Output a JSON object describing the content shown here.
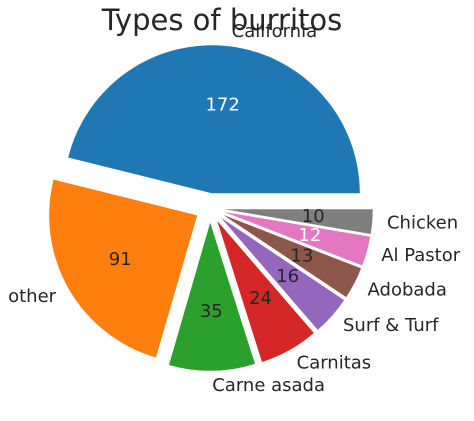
{
  "chart_data": {
    "type": "pie",
    "title": "Types of burritos",
    "slices": [
      {
        "label": "California",
        "value": 172,
        "color": "#1f77b4",
        "value_color": "#ffffff"
      },
      {
        "label": "other",
        "value": 91,
        "color": "#ff7f0e",
        "value_color": "#262626"
      },
      {
        "label": "Carne asada",
        "value": 35,
        "color": "#2ca02c",
        "value_color": "#262626"
      },
      {
        "label": "Carnitas",
        "value": 24,
        "color": "#d62728",
        "value_color": "#262626"
      },
      {
        "label": "Surf & Turf",
        "value": 16,
        "color": "#9467bd",
        "value_color": "#262626"
      },
      {
        "label": "Adobada",
        "value": 13,
        "color": "#8c564b",
        "value_color": "#262626"
      },
      {
        "label": "Al Pastor",
        "value": 12,
        "color": "#e377c2",
        "value_color": "#ffffff"
      },
      {
        "label": "Chicken",
        "value": 10,
        "color": "#7f7f7f",
        "value_color": "#262626"
      }
    ],
    "exploded": true,
    "start_angle_deg": 0,
    "direction": "counterclockwise",
    "legend": "none"
  }
}
